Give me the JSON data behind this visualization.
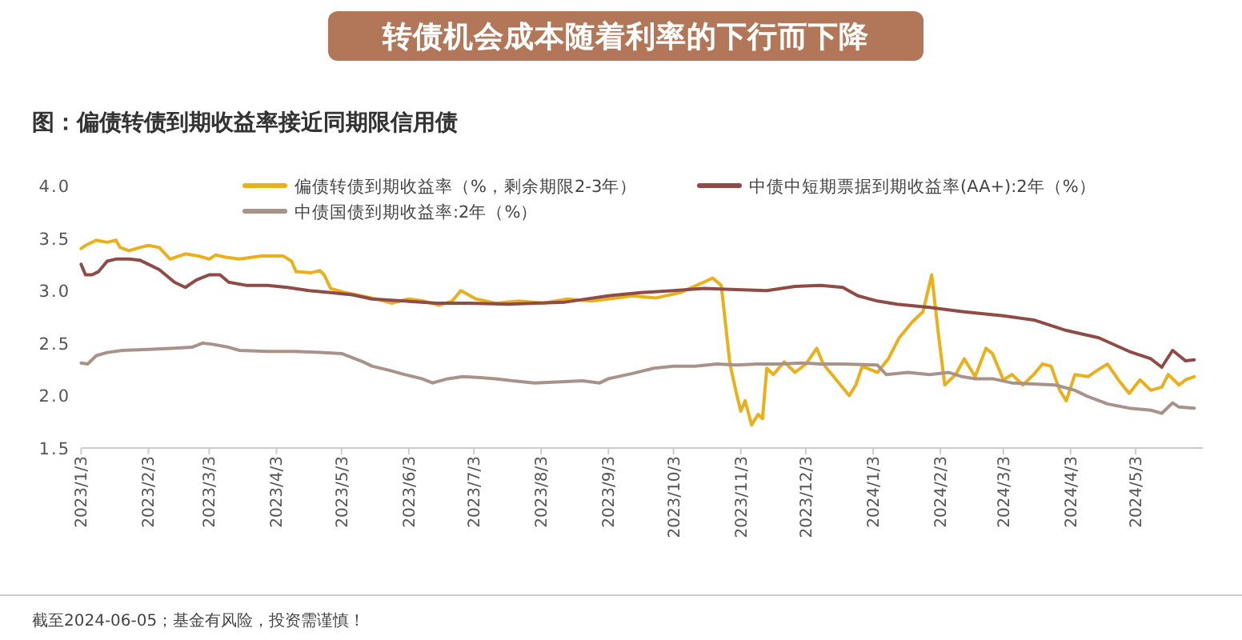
{
  "chart_data": {
    "type": "line",
    "title": "转债机会成本随着利率的下行而下降",
    "subtitle": "图：偏债转债到期收益率接近同期限信用债",
    "xlim": [
      "2023-01-03",
      "2024-06-03"
    ],
    "xticks": [
      {
        "value": "2023-01-03",
        "label": "2023/1/3"
      },
      {
        "value": "2023-02-03",
        "label": "2023/2/3"
      },
      {
        "value": "2023-03-03",
        "label": "2023/3/3"
      },
      {
        "value": "2023-04-03",
        "label": "2023/4/3"
      },
      {
        "value": "2023-05-03",
        "label": "2023/5/3"
      },
      {
        "value": "2023-06-03",
        "label": "2023/6/3"
      },
      {
        "value": "2023-07-03",
        "label": "2023/7/3"
      },
      {
        "value": "2023-08-03",
        "label": "2023/8/3"
      },
      {
        "value": "2023-09-03",
        "label": "2023/9/3"
      },
      {
        "value": "2023-10-03",
        "label": "2023/10/3"
      },
      {
        "value": "2023-11-03",
        "label": "2023/11/3"
      },
      {
        "value": "2023-12-03",
        "label": "2023/12/3"
      },
      {
        "value": "2024-01-03",
        "label": "2024/1/3"
      },
      {
        "value": "2024-02-03",
        "label": "2024/2/3"
      },
      {
        "value": "2024-03-03",
        "label": "2024/3/3"
      },
      {
        "value": "2024-04-03",
        "label": "2024/4/3"
      },
      {
        "value": "2024-05-03",
        "label": "2024/5/3"
      }
    ],
    "ylim": [
      1.5,
      4.0
    ],
    "yticks": [
      1.5,
      {
        "value": 2,
        "label": "2.0"
      },
      2.5,
      {
        "value": 3,
        "label": "3.0"
      },
      3.5,
      {
        "value": 4,
        "label": "4.0"
      }
    ],
    "legend": "top",
    "series": [
      {
        "name": "偏债转债到期收益率（%，剩余期限2-3年）",
        "color": "#e9b01c",
        "x": [
          "2023-01-03",
          "2023-01-05",
          "2023-01-10",
          "2023-01-15",
          "2023-01-19",
          "2023-01-21",
          "2023-01-25",
          "2023-01-30",
          "2023-02-03",
          "2023-02-08",
          "2023-02-13",
          "2023-02-20",
          "2023-02-26",
          "2023-03-03",
          "2023-03-06",
          "2023-03-10",
          "2023-03-17",
          "2023-03-27",
          "2023-04-06",
          "2023-04-10",
          "2023-04-12",
          "2023-04-19",
          "2023-04-23",
          "2023-04-25",
          "2023-04-28",
          "2023-05-05",
          "2023-05-12",
          "2023-05-19",
          "2023-05-26",
          "2023-06-03",
          "2023-06-10",
          "2023-06-17",
          "2023-06-23",
          "2023-06-27",
          "2023-07-04",
          "2023-07-13",
          "2023-07-24",
          "2023-08-04",
          "2023-08-15",
          "2023-08-26",
          "2023-09-03",
          "2023-09-14",
          "2023-09-25",
          "2023-10-06",
          "2023-10-17",
          "2023-10-21",
          "2023-10-25",
          "2023-10-29",
          "2023-11-01",
          "2023-11-03",
          "2023-11-05",
          "2023-11-08",
          "2023-11-11",
          "2023-11-13",
          "2023-11-15",
          "2023-11-18",
          "2023-11-23",
          "2023-11-28",
          "2023-12-03",
          "2023-12-08",
          "2023-12-11",
          "2023-12-17",
          "2023-12-23",
          "2023-12-26",
          "2023-12-29",
          "2024-01-05",
          "2024-01-10",
          "2024-01-15",
          "2024-01-21",
          "2024-01-26",
          "2024-01-30",
          "2024-02-02",
          "2024-02-05",
          "2024-02-10",
          "2024-02-14",
          "2024-02-19",
          "2024-02-24",
          "2024-02-27",
          "2024-03-03",
          "2024-03-07",
          "2024-03-12",
          "2024-03-17",
          "2024-03-21",
          "2024-03-25",
          "2024-03-29",
          "2024-04-01",
          "2024-04-05",
          "2024-04-11",
          "2024-04-16",
          "2024-04-20",
          "2024-04-25",
          "2024-04-30",
          "2024-05-05",
          "2024-05-10",
          "2024-05-15",
          "2024-05-18",
          "2024-05-23",
          "2024-05-26",
          "2024-05-30"
        ],
        "values": [
          3.4,
          3.43,
          3.48,
          3.46,
          3.48,
          3.41,
          3.38,
          3.41,
          3.43,
          3.41,
          3.3,
          3.35,
          3.33,
          3.3,
          3.34,
          3.32,
          3.3,
          3.33,
          3.33,
          3.28,
          3.18,
          3.17,
          3.19,
          3.15,
          3.02,
          2.98,
          2.95,
          2.92,
          2.88,
          2.92,
          2.9,
          2.86,
          2.9,
          3.0,
          2.92,
          2.88,
          2.9,
          2.88,
          2.92,
          2.9,
          2.92,
          2.95,
          2.93,
          2.98,
          3.08,
          3.12,
          3.05,
          2.3,
          2.02,
          1.85,
          1.95,
          1.72,
          1.82,
          1.78,
          2.26,
          2.2,
          2.32,
          2.22,
          2.3,
          2.45,
          2.3,
          2.15,
          2.0,
          2.1,
          2.28,
          2.22,
          2.35,
          2.55,
          2.7,
          2.8,
          3.15,
          2.6,
          2.1,
          2.2,
          2.35,
          2.18,
          2.45,
          2.4,
          2.15,
          2.2,
          2.1,
          2.2,
          2.3,
          2.28,
          2.05,
          1.95,
          2.2,
          2.18,
          2.25,
          2.3,
          2.15,
          2.02,
          2.15,
          2.05,
          2.08,
          2.2,
          2.1,
          2.15,
          2.18
        ]
      },
      {
        "name": "中债中短期票据到期收益率(AA+):2年（%）",
        "color": "#8f4b46",
        "x": [
          "2023-01-03",
          "2023-01-05",
          "2023-01-08",
          "2023-01-11",
          "2023-01-15",
          "2023-01-19",
          "2023-01-25",
          "2023-01-30",
          "2023-02-03",
          "2023-02-08",
          "2023-02-15",
          "2023-02-20",
          "2023-02-25",
          "2023-03-03",
          "2023-03-08",
          "2023-03-12",
          "2023-03-20",
          "2023-03-30",
          "2023-04-08",
          "2023-04-18",
          "2023-04-28",
          "2023-05-08",
          "2023-05-17",
          "2023-06-01",
          "2023-06-16",
          "2023-07-01",
          "2023-07-19",
          "2023-07-31",
          "2023-08-14",
          "2023-09-03",
          "2023-09-18",
          "2023-10-03",
          "2023-10-17",
          "2023-11-01",
          "2023-11-15",
          "2023-11-28",
          "2023-12-10",
          "2023-12-20",
          "2023-12-27",
          "2024-01-05",
          "2024-01-14",
          "2024-01-29",
          "2024-02-13",
          "2024-02-22",
          "2024-03-03",
          "2024-03-17",
          "2024-04-01",
          "2024-04-16",
          "2024-04-30",
          "2024-05-10",
          "2024-05-15",
          "2024-05-20",
          "2024-05-23",
          "2024-05-26",
          "2024-05-30"
        ],
        "values": [
          3.25,
          3.15,
          3.15,
          3.18,
          3.28,
          3.3,
          3.3,
          3.29,
          3.25,
          3.2,
          3.08,
          3.03,
          3.1,
          3.15,
          3.15,
          3.08,
          3.05,
          3.05,
          3.03,
          3.0,
          2.98,
          2.96,
          2.92,
          2.9,
          2.88,
          2.88,
          2.87,
          2.88,
          2.89,
          2.95,
          2.98,
          3.0,
          3.02,
          3.01,
          3.0,
          3.04,
          3.05,
          3.03,
          2.95,
          2.9,
          2.87,
          2.84,
          2.8,
          2.78,
          2.76,
          2.72,
          2.62,
          2.55,
          2.42,
          2.35,
          2.27,
          2.43,
          2.38,
          2.33,
          2.34
        ]
      },
      {
        "name": "中债国债到期收益率:2年（%）",
        "color": "#a8928a",
        "x": [
          "2023-01-03",
          "2023-01-06",
          "2023-01-10",
          "2023-01-15",
          "2023-01-22",
          "2023-02-03",
          "2023-02-15",
          "2023-02-23",
          "2023-02-28",
          "2023-03-04",
          "2023-03-12",
          "2023-03-17",
          "2023-03-30",
          "2023-04-11",
          "2023-04-23",
          "2023-05-03",
          "2023-05-13",
          "2023-05-17",
          "2023-05-25",
          "2023-06-01",
          "2023-06-09",
          "2023-06-14",
          "2023-06-21",
          "2023-06-28",
          "2023-07-06",
          "2023-07-13",
          "2023-07-21",
          "2023-07-31",
          "2023-08-12",
          "2023-08-22",
          "2023-08-30",
          "2023-09-03",
          "2023-09-14",
          "2023-09-24",
          "2023-10-03",
          "2023-10-13",
          "2023-10-23",
          "2023-11-01",
          "2023-11-11",
          "2023-11-21",
          "2023-12-01",
          "2023-12-10",
          "2023-12-20",
          "2024-01-05",
          "2024-01-09",
          "2024-01-19",
          "2024-01-29",
          "2024-02-07",
          "2024-02-13",
          "2024-02-19",
          "2024-02-27",
          "2024-03-07",
          "2024-03-17",
          "2024-03-27",
          "2024-04-05",
          "2024-04-11",
          "2024-04-20",
          "2024-04-30",
          "2024-05-10",
          "2024-05-15",
          "2024-05-20",
          "2024-05-23",
          "2024-05-30"
        ],
        "values": [
          2.31,
          2.3,
          2.38,
          2.41,
          2.43,
          2.44,
          2.45,
          2.46,
          2.5,
          2.49,
          2.46,
          2.43,
          2.42,
          2.42,
          2.41,
          2.4,
          2.32,
          2.28,
          2.24,
          2.2,
          2.16,
          2.12,
          2.16,
          2.18,
          2.17,
          2.16,
          2.14,
          2.12,
          2.13,
          2.14,
          2.12,
          2.16,
          2.21,
          2.26,
          2.28,
          2.28,
          2.3,
          2.29,
          2.3,
          2.3,
          2.31,
          2.3,
          2.3,
          2.29,
          2.2,
          2.22,
          2.2,
          2.22,
          2.18,
          2.16,
          2.16,
          2.12,
          2.11,
          2.1,
          2.05,
          1.99,
          1.92,
          1.88,
          1.86,
          1.83,
          1.93,
          1.89,
          1.88
        ]
      }
    ],
    "annotations": [
      "截至2024-06-05；基金有风险，投资需谨慎！"
    ]
  }
}
